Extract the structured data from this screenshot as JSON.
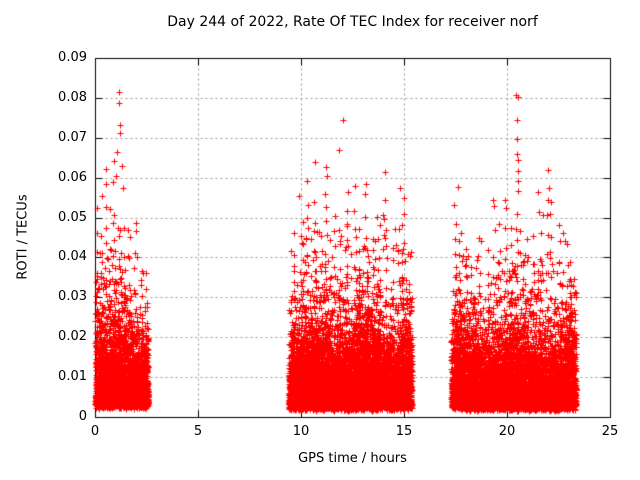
{
  "chart_data": {
    "type": "scatter",
    "title": "Day 244 of 2022, Rate Of TEC Index for receiver norf",
    "xlabel": "GPS time / hours",
    "ylabel": "ROTI / TECUs",
    "xlim": [
      0,
      25
    ],
    "ylim": [
      0,
      0.09
    ],
    "xticks": [
      0,
      5,
      10,
      15,
      20,
      25
    ],
    "xtick_labels": [
      "0",
      "5",
      "10",
      "15",
      "20",
      "25"
    ],
    "yticks": [
      0,
      0.01,
      0.02,
      0.03,
      0.04,
      0.05,
      0.06,
      0.07,
      0.08,
      0.09
    ],
    "ytick_labels": [
      "0",
      "0.01",
      "0.02",
      "0.03",
      "0.04",
      "0.05",
      "0.06",
      "0.07",
      "0.08",
      "0.09"
    ],
    "grid": true,
    "legend": "none",
    "grid_color": "#999999",
    "frame_color": "#000000",
    "background_color": "#ffffff",
    "marker": {
      "shape": "plus",
      "color": "#ff0000",
      "size": 7
    },
    "seed": 244,
    "clusters": [
      {
        "t": [
          0.02,
          2.58
        ],
        "n_core": 2700,
        "y_base": 0.0035,
        "y_mean": 0.0056,
        "wave": [
          1.1,
          1.1
        ],
        "n_mid": 300,
        "mid_mean": 0.008,
        "spikes": [
          [
            0.08,
            0.056,
            8
          ],
          [
            0.3,
            0.048,
            8
          ],
          [
            0.55,
            0.06,
            9
          ],
          [
            0.75,
            0.045,
            7
          ],
          [
            0.95,
            0.053,
            12
          ],
          [
            1.1,
            0.05,
            10
          ],
          [
            1.25,
            0.048,
            9
          ],
          [
            1.45,
            0.042,
            7
          ],
          [
            1.65,
            0.049,
            6
          ],
          [
            1.95,
            0.05,
            7
          ],
          [
            2.3,
            0.037,
            6
          ],
          [
            2.45,
            0.033,
            5
          ]
        ],
        "outliers": [
          [
            1.15,
            0.0815
          ],
          [
            1.18,
            0.0787
          ],
          [
            1.21,
            0.0733
          ],
          [
            1.23,
            0.0713
          ],
          [
            1.05,
            0.0665
          ],
          [
            0.92,
            0.0643
          ],
          [
            1.3,
            0.0628
          ],
          [
            0.55,
            0.0622
          ],
          [
            1.0,
            0.0605
          ],
          [
            0.85,
            0.0588
          ],
          [
            1.35,
            0.0573
          ],
          [
            0.35,
            0.0553
          ],
          [
            2.0,
            0.0487
          ],
          [
            1.6,
            0.047
          ]
        ]
      },
      {
        "t": [
          9.42,
          15.38
        ],
        "n_core": 6500,
        "y_base": 0.003,
        "y_mean": 0.006,
        "wave": [
          2.5,
          0.2
        ],
        "n_mid": 850,
        "mid_mean": 0.0085,
        "spikes": [
          [
            9.7,
            0.047,
            8
          ],
          [
            10.05,
            0.051,
            8
          ],
          [
            10.3,
            0.056,
            10
          ],
          [
            10.7,
            0.049,
            8
          ],
          [
            11.2,
            0.059,
            12
          ],
          [
            11.45,
            0.047,
            8
          ],
          [
            11.65,
            0.053,
            9
          ],
          [
            11.9,
            0.05,
            8
          ],
          [
            12.2,
            0.054,
            9
          ],
          [
            12.6,
            0.053,
            9
          ],
          [
            12.85,
            0.05,
            8
          ],
          [
            13.15,
            0.057,
            10
          ],
          [
            13.5,
            0.048,
            8
          ],
          [
            13.8,
            0.051,
            8
          ],
          [
            14.1,
            0.058,
            10
          ],
          [
            14.45,
            0.046,
            7
          ],
          [
            14.75,
            0.049,
            8
          ],
          [
            14.95,
            0.054,
            9
          ],
          [
            15.2,
            0.042,
            6
          ]
        ],
        "outliers": [
          [
            12.05,
            0.0745
          ],
          [
            11.85,
            0.067
          ],
          [
            10.7,
            0.064
          ],
          [
            11.2,
            0.0627
          ],
          [
            11.25,
            0.0605
          ],
          [
            14.1,
            0.0615
          ],
          [
            10.3,
            0.0592
          ],
          [
            12.62,
            0.058
          ],
          [
            13.15,
            0.0585
          ],
          [
            14.8,
            0.0575
          ],
          [
            9.9,
            0.0555
          ],
          [
            12.3,
            0.0563
          ],
          [
            15.0,
            0.0548
          ]
        ]
      },
      {
        "t": [
          17.3,
          23.35
        ],
        "n_core": 6000,
        "y_base": 0.003,
        "y_mean": 0.0055,
        "wave": [
          2.2,
          0.5
        ],
        "n_mid": 800,
        "mid_mean": 0.008,
        "spikes": [
          [
            17.5,
            0.051,
            9
          ],
          [
            17.7,
            0.047,
            8
          ],
          [
            18.05,
            0.045,
            8
          ],
          [
            18.3,
            0.041,
            7
          ],
          [
            18.7,
            0.038,
            6
          ],
          [
            19.1,
            0.043,
            7
          ],
          [
            19.35,
            0.054,
            8
          ],
          [
            19.6,
            0.05,
            8
          ],
          [
            19.9,
            0.054,
            8
          ],
          [
            20.2,
            0.046,
            7
          ],
          [
            20.5,
            0.062,
            12
          ],
          [
            20.8,
            0.044,
            7
          ],
          [
            21.3,
            0.047,
            7
          ],
          [
            21.6,
            0.053,
            8
          ],
          [
            21.95,
            0.057,
            10
          ],
          [
            22.15,
            0.054,
            8
          ],
          [
            22.6,
            0.051,
            8
          ],
          [
            22.9,
            0.046,
            7
          ],
          [
            23.1,
            0.041,
            6
          ]
        ],
        "outliers": [
          [
            20.45,
            0.0807
          ],
          [
            20.55,
            0.0803
          ],
          [
            20.5,
            0.0744
          ],
          [
            20.48,
            0.0697
          ],
          [
            20.5,
            0.066
          ],
          [
            20.52,
            0.0645
          ],
          [
            20.55,
            0.0617
          ],
          [
            22.0,
            0.062
          ],
          [
            17.6,
            0.0577
          ],
          [
            22.02,
            0.0575
          ],
          [
            19.3,
            0.0545
          ],
          [
            19.9,
            0.0545
          ],
          [
            22.15,
            0.054
          ],
          [
            21.5,
            0.0565
          ],
          [
            17.45,
            0.0532
          ]
        ]
      }
    ]
  }
}
